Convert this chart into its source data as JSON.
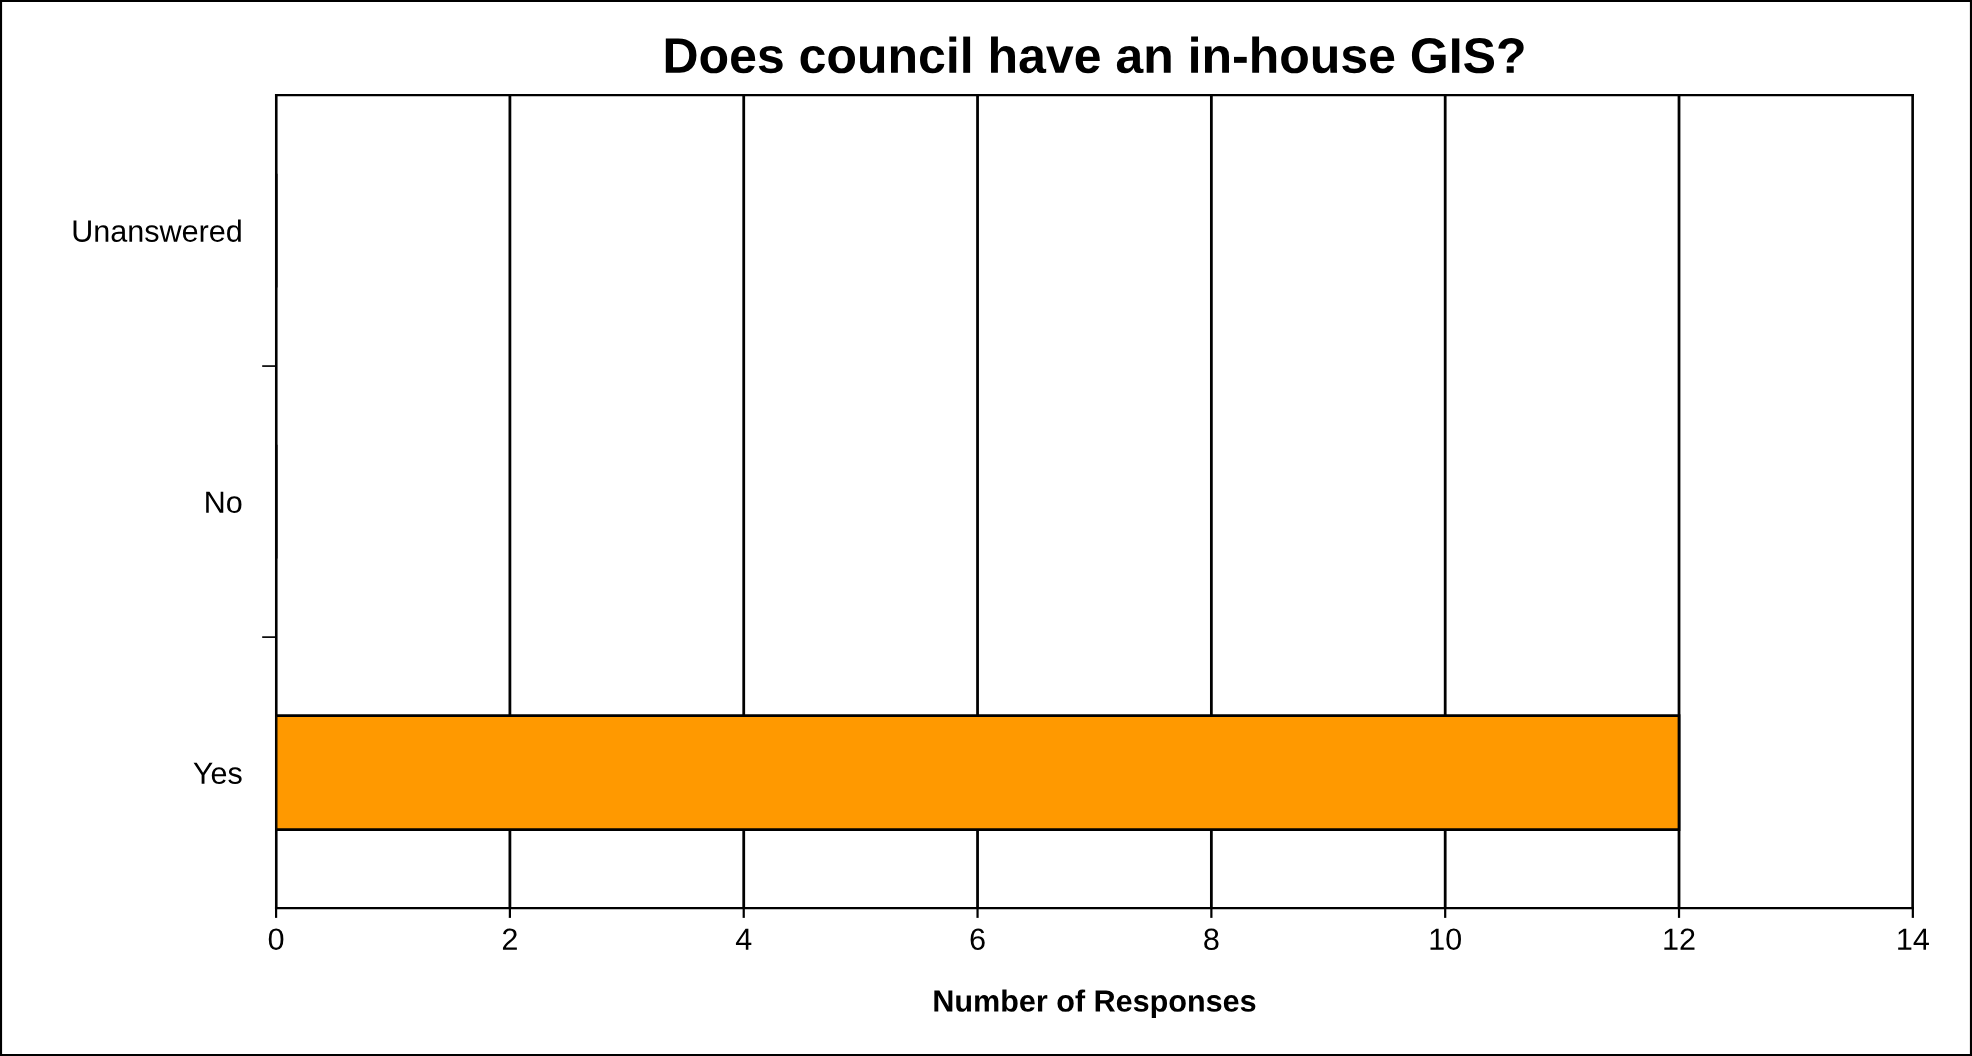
{
  "chart_data": {
    "type": "bar",
    "orientation": "horizontal",
    "title": "Does council have an in-house GIS?",
    "xlabel": "Number of Responses",
    "categories": [
      "Unanswered",
      "No",
      "Yes"
    ],
    "values": [
      0,
      0,
      12
    ],
    "color": "#ff9900",
    "xlim": [
      0,
      14
    ],
    "xticks": [
      0,
      2,
      4,
      6,
      8,
      10,
      12,
      14
    ],
    "grid": "x",
    "legend": false
  }
}
